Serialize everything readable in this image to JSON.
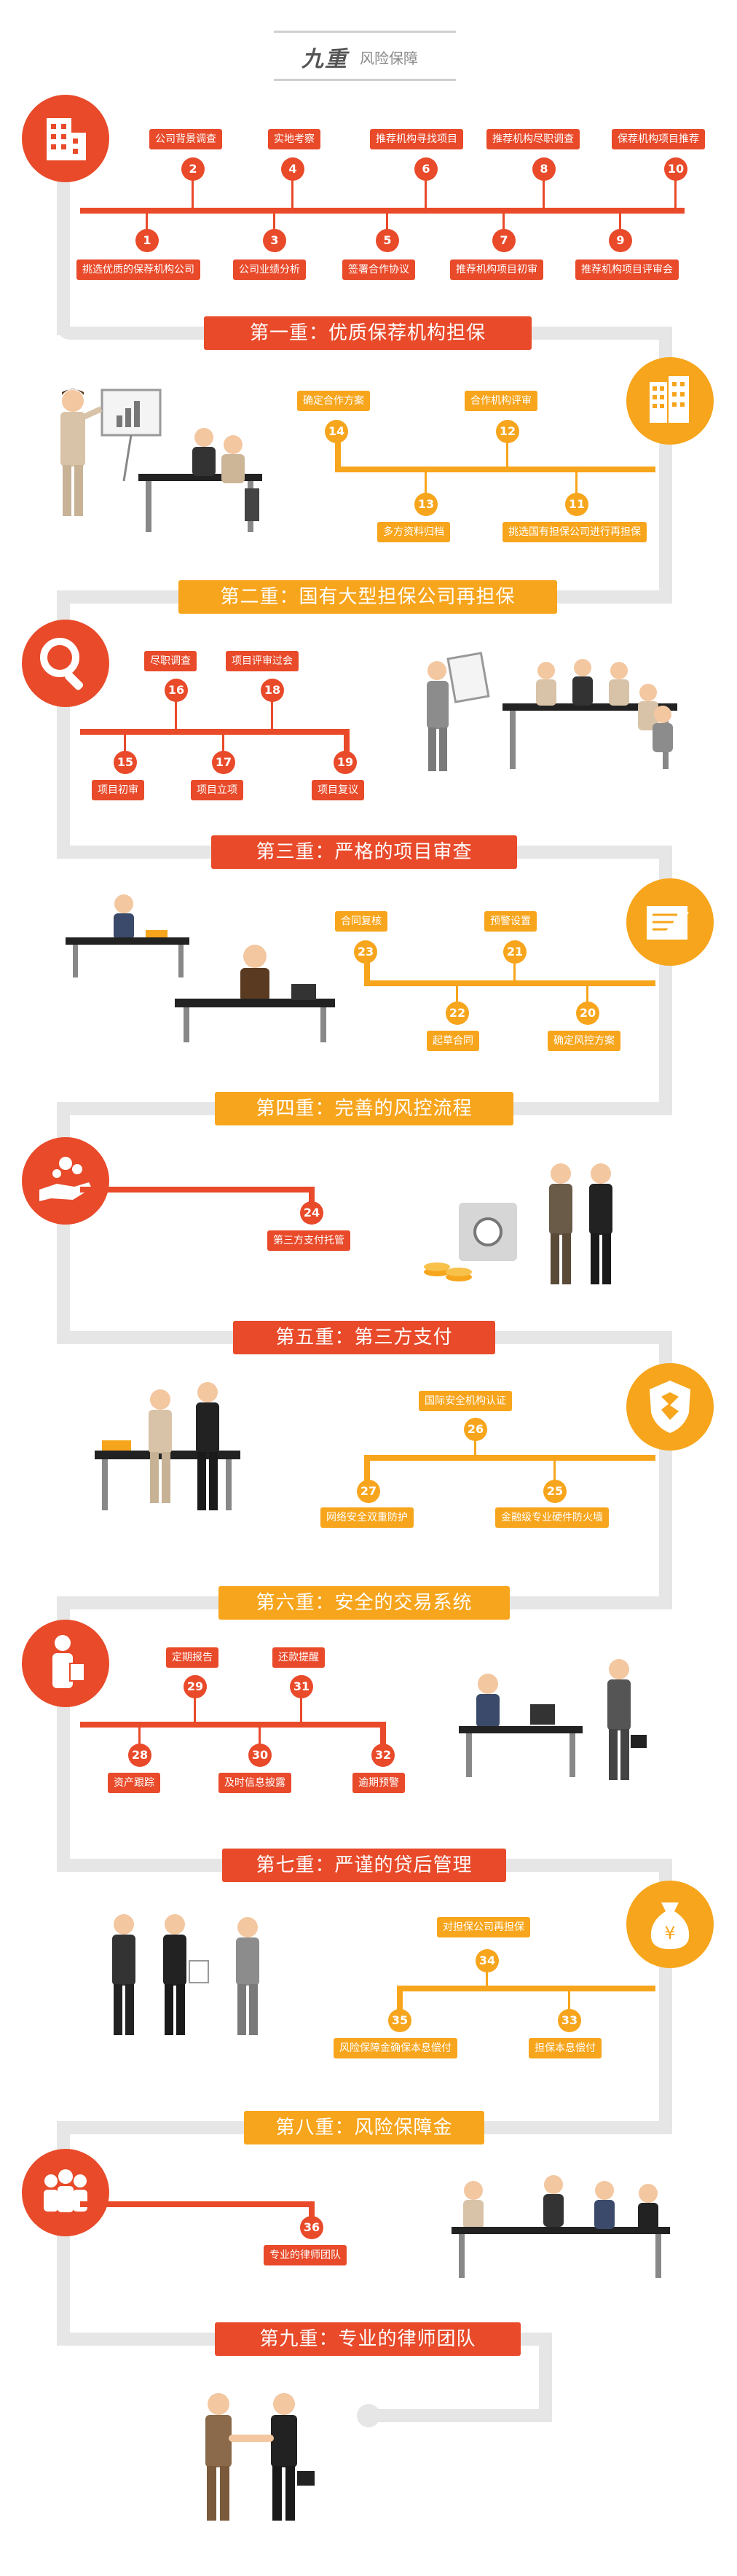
{
  "title": {
    "main": "九重",
    "sub": "风险保障"
  },
  "sections": [
    {
      "banner": "第一重：优质保荐机构担保",
      "icon": "building-icon",
      "items": [
        {
          "n": "1",
          "label": "挑选优质的保荐机构公司"
        },
        {
          "n": "2",
          "label": "公司背景调查"
        },
        {
          "n": "3",
          "label": "公司业绩分析"
        },
        {
          "n": "4",
          "label": "实地考察"
        },
        {
          "n": "5",
          "label": "签署合作协议"
        },
        {
          "n": "6",
          "label": "推荐机构寻找项目"
        },
        {
          "n": "7",
          "label": "推荐机构项目初审"
        },
        {
          "n": "8",
          "label": "推荐机构尽职调查"
        },
        {
          "n": "9",
          "label": "推荐机构项目评审会"
        },
        {
          "n": "10",
          "label": "保荐机构项目推荐"
        }
      ]
    },
    {
      "banner": "第二重：国有大型担保公司再担保",
      "icon": "office-tower-icon",
      "items": [
        {
          "n": "11",
          "label": "挑选国有担保公司进行再担保"
        },
        {
          "n": "12",
          "label": "合作机构评审"
        },
        {
          "n": "13",
          "label": "多方资料归档"
        },
        {
          "n": "14",
          "label": "确定合作方案"
        }
      ]
    },
    {
      "banner": "第三重：严格的项目审查",
      "icon": "magnifier-icon",
      "items": [
        {
          "n": "15",
          "label": "项目初审"
        },
        {
          "n": "16",
          "label": "尽职调查"
        },
        {
          "n": "17",
          "label": "项目立项"
        },
        {
          "n": "18",
          "label": "项目评审过会"
        },
        {
          "n": "19",
          "label": "项目复议"
        }
      ]
    },
    {
      "banner": "第四重：完善的风控流程",
      "icon": "contract-icon",
      "items": [
        {
          "n": "20",
          "label": "确定风控方案"
        },
        {
          "n": "21",
          "label": "预警设置"
        },
        {
          "n": "22",
          "label": "起草合同"
        },
        {
          "n": "23",
          "label": "合同复核"
        }
      ]
    },
    {
      "banner": "第五重：第三方支付",
      "icon": "coin-hand-icon",
      "items": [
        {
          "n": "24",
          "label": "第三方支付托管"
        }
      ]
    },
    {
      "banner": "第六重：安全的交易系统",
      "icon": "shield-icon",
      "items": [
        {
          "n": "25",
          "label": "金融级专业硬件防火墙"
        },
        {
          "n": "26",
          "label": "国际安全机构认证"
        },
        {
          "n": "27",
          "label": "网络安全双重防护"
        }
      ]
    },
    {
      "banner": "第七重：严谨的贷后管理",
      "icon": "person-document-icon",
      "items": [
        {
          "n": "28",
          "label": "资产跟踪"
        },
        {
          "n": "29",
          "label": "定期报告"
        },
        {
          "n": "30",
          "label": "及时信息披露"
        },
        {
          "n": "31",
          "label": "还款提醒"
        },
        {
          "n": "32",
          "label": "逾期预警"
        }
      ]
    },
    {
      "banner": "第八重：风险保障金",
      "icon": "money-bag-icon",
      "items": [
        {
          "n": "33",
          "label": "担保本息偿付"
        },
        {
          "n": "34",
          "label": "对担保公司再担保"
        },
        {
          "n": "35",
          "label": "风险保障金确保本息偿付"
        }
      ]
    },
    {
      "banner": "第九重：专业的律师团队",
      "icon": "team-icon",
      "items": [
        {
          "n": "36",
          "label": "专业的律师团队"
        }
      ]
    }
  ],
  "colors": {
    "red": "#e84a2a",
    "orange": "#f7a51c",
    "track": "#e6e6e6"
  }
}
